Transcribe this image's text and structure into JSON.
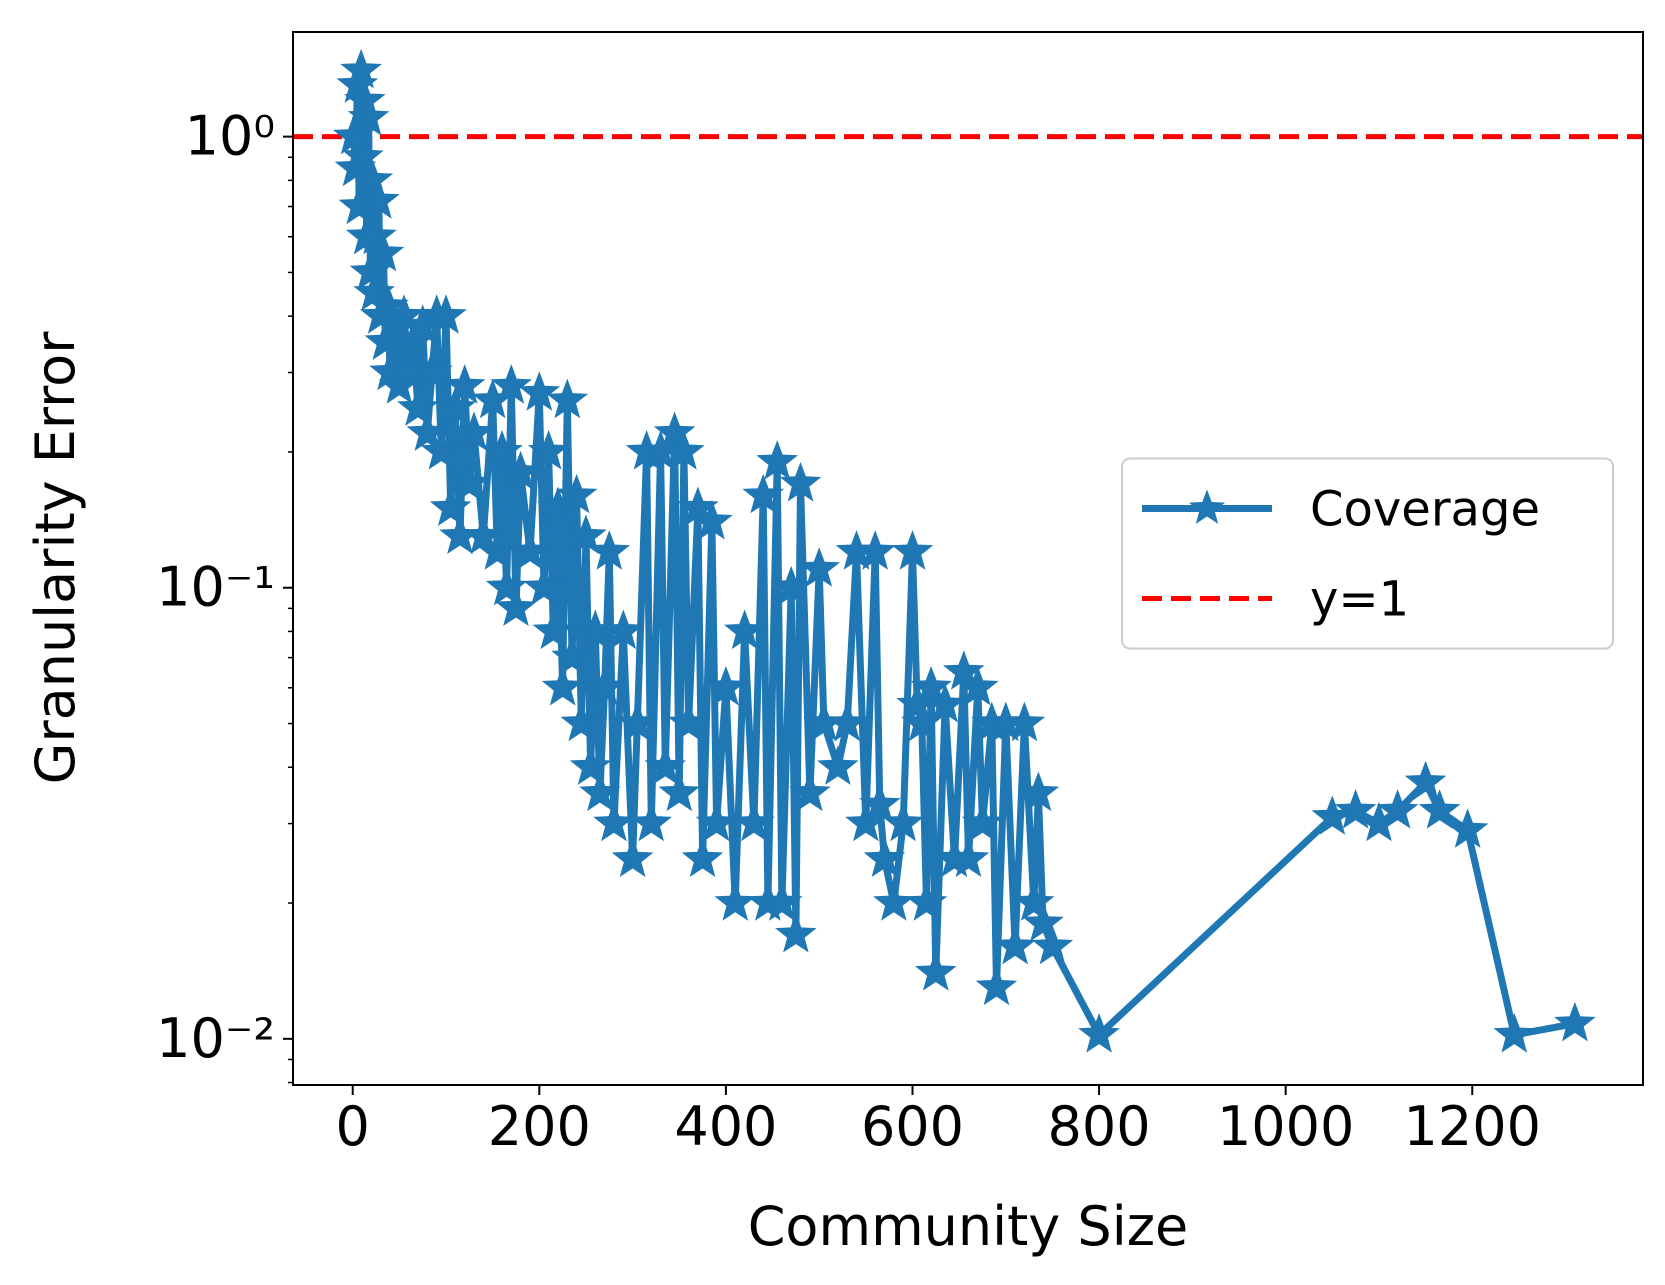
{
  "chart_data": {
    "type": "line",
    "x_label": "Community Size",
    "y_label": "Granularity Error",
    "y_scale": "log",
    "xlim": [
      -64,
      1383
    ],
    "ylim": [
      0.0079,
      1.706
    ],
    "xticks": [
      0,
      200,
      400,
      600,
      800,
      1000,
      1200
    ],
    "yticks": [
      {
        "value": 0.01,
        "label": "10⁻²"
      },
      {
        "value": 0.1,
        "label": "10⁻¹"
      },
      {
        "value": 1,
        "label": "10⁰"
      }
    ],
    "yminor_ticks": [
      0.008,
      0.009,
      0.02,
      0.03,
      0.04,
      0.05,
      0.06,
      0.07,
      0.08,
      0.09,
      0.2,
      0.3,
      0.4,
      0.5,
      0.6,
      0.7,
      0.8,
      0.9
    ],
    "legend_position": "center right",
    "series": [
      {
        "name": "Coverage",
        "color": "#1f77b4",
        "marker": "star",
        "x": [
          1,
          3,
          5,
          7,
          9,
          11,
          13,
          15,
          17,
          19,
          21,
          23,
          25,
          28,
          30,
          33,
          35,
          38,
          40,
          45,
          50,
          55,
          60,
          65,
          70,
          75,
          80,
          85,
          90,
          95,
          100,
          105,
          110,
          115,
          120,
          125,
          130,
          140,
          150,
          155,
          160,
          165,
          170,
          175,
          180,
          190,
          200,
          205,
          210,
          215,
          220,
          225,
          230,
          235,
          240,
          245,
          250,
          255,
          260,
          265,
          270,
          275,
          280,
          290,
          300,
          305,
          315,
          320,
          330,
          335,
          345,
          350,
          355,
          360,
          370,
          375,
          385,
          390,
          400,
          410,
          420,
          430,
          440,
          445,
          455,
          460,
          470,
          475,
          480,
          490,
          500,
          505,
          520,
          530,
          540,
          550,
          560,
          565,
          570,
          580,
          590,
          600,
          605,
          610,
          615,
          620,
          625,
          635,
          645,
          655,
          660,
          670,
          675,
          685,
          690,
          700,
          710,
          720,
          730,
          735,
          740,
          750,
          800,
          1050,
          1075,
          1100,
          1120,
          1150,
          1165,
          1195,
          1245,
          1310
        ],
        "values": [
          1.0,
          0.85,
          1.3,
          0.7,
          1.4,
          0.9,
          1.2,
          0.6,
          1.1,
          0.5,
          0.8,
          0.45,
          0.6,
          0.72,
          0.4,
          0.55,
          0.35,
          0.42,
          0.3,
          0.38,
          0.28,
          0.4,
          0.3,
          0.35,
          0.25,
          0.38,
          0.22,
          0.3,
          0.4,
          0.2,
          0.4,
          0.15,
          0.25,
          0.13,
          0.28,
          0.17,
          0.22,
          0.13,
          0.26,
          0.12,
          0.2,
          0.1,
          0.28,
          0.09,
          0.18,
          0.12,
          0.27,
          0.1,
          0.2,
          0.08,
          0.15,
          0.06,
          0.26,
          0.07,
          0.16,
          0.05,
          0.13,
          0.04,
          0.08,
          0.035,
          0.06,
          0.12,
          0.03,
          0.08,
          0.025,
          0.05,
          0.2,
          0.03,
          0.2,
          0.04,
          0.22,
          0.035,
          0.2,
          0.05,
          0.15,
          0.025,
          0.14,
          0.03,
          0.06,
          0.02,
          0.08,
          0.03,
          0.16,
          0.02,
          0.19,
          0.02,
          0.1,
          0.017,
          0.17,
          0.035,
          0.11,
          0.05,
          0.04,
          0.05,
          0.12,
          0.03,
          0.12,
          0.033,
          0.025,
          0.02,
          0.03,
          0.12,
          0.055,
          0.05,
          0.02,
          0.06,
          0.014,
          0.055,
          0.025,
          0.065,
          0.025,
          0.06,
          0.03,
          0.05,
          0.013,
          0.05,
          0.016,
          0.05,
          0.02,
          0.035,
          0.018,
          0.016,
          0.0102,
          0.031,
          0.032,
          0.03,
          0.032,
          0.037,
          0.032,
          0.029,
          0.0102,
          0.0108
        ]
      }
    ],
    "hlines": [
      {
        "name": "y=1",
        "value": 1,
        "color": "#ff0000"
      }
    ]
  }
}
